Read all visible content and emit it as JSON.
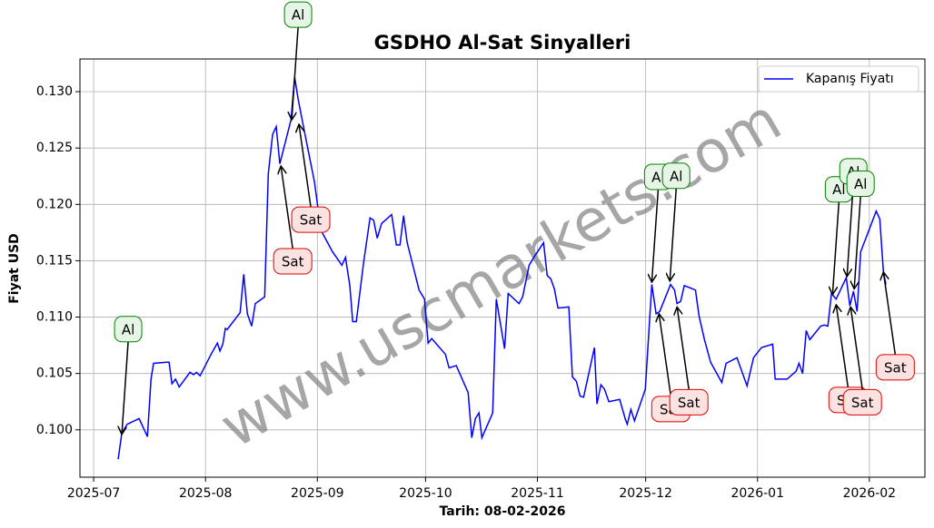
{
  "chart_data": {
    "type": "line",
    "title": "GSDHO Al-Sat Sinyalleri",
    "x_label": "Tarih: 08-02-2026",
    "y_label": "Fiyat USD",
    "watermark": "www.uscmarkets.com",
    "legend": "upper right",
    "grid": true,
    "xlim": [
      -3.8,
      230.4
    ],
    "ylim": [
      0.0958,
      0.1329
    ],
    "xticks": [
      {
        "value": 0,
        "label": "2025-07"
      },
      {
        "value": 31,
        "label": "2025-08"
      },
      {
        "value": 62,
        "label": "2025-09"
      },
      {
        "value": 92,
        "label": "2025-10"
      },
      {
        "value": 123,
        "label": "2025-11"
      },
      {
        "value": 153,
        "label": "2025-12"
      },
      {
        "value": 184,
        "label": "2026-01"
      },
      {
        "value": 215,
        "label": "2026-02"
      }
    ],
    "yticks": [
      {
        "value": 0.1,
        "label": "0.100"
      },
      {
        "value": 0.105,
        "label": "0.105"
      },
      {
        "value": 0.11,
        "label": "0.110"
      },
      {
        "value": 0.115,
        "label": "0.115"
      },
      {
        "value": 0.12,
        "label": "0.120"
      },
      {
        "value": 0.125,
        "label": "0.125"
      },
      {
        "value": 0.13,
        "label": "0.130"
      }
    ],
    "x": [
      6.8,
      7.8,
      9.3,
      12.6,
      14.9,
      15.9,
      16.6,
      20.2,
      20.9,
      21.7,
      22.7,
      23.7,
      26.7,
      27.7,
      28.5,
      29.5,
      32.7,
      34.3,
      35.0,
      35.8,
      36.5,
      37.0,
      40.6,
      41.6,
      42.6,
      43.8,
      44.8,
      47.4,
      48.4,
      49.6,
      50.6,
      51.6,
      54.7,
      55.7,
      56.7,
      58.4,
      61.2,
      62.2,
      63.5,
      66.2,
      68.8,
      69.8,
      71.0,
      71.8,
      72.8,
      74.8,
      76.6,
      77.6,
      78.6,
      79.8,
      82.6,
      83.9,
      84.9,
      85.9,
      86.9,
      90.2,
      91.7,
      92.7,
      93.7,
      97.5,
      98.5,
      100.5,
      103.8,
      104.8,
      105.8,
      106.8,
      107.6,
      110.6,
      111.6,
      113.9,
      114.9,
      117.9,
      118.9,
      120.7,
      122.2,
      124.7,
      125.7,
      126.7,
      127.7,
      128.7,
      131.7,
      132.7,
      133.8,
      134.8,
      135.8,
      138.8,
      139.5,
      140.6,
      141.6,
      142.8,
      145.8,
      147.4,
      147.9,
      148.9,
      149.9,
      152.9,
      154.7,
      155.9,
      156.9,
      159.9,
      161.0,
      161.7,
      162.7,
      163.7,
      166.8,
      167.8,
      169.3,
      171.0,
      174.1,
      175.3,
      178.3,
      181.1,
      182.9,
      185.1,
      188.2,
      188.9,
      192.2,
      194.7,
      195.5,
      196.5,
      197.5,
      198.5,
      201.5,
      202.5,
      203.5,
      204.5,
      205.8,
      208.6,
      209.6,
      210.6,
      211.6,
      212.6,
      216.9,
      217.9,
      218.9,
      219.6
    ],
    "series": [
      {
        "name": "Kapanış Fiyatı",
        "color": "#0000ff",
        "values": [
          0.0974,
          0.0997,
          0.1005,
          0.101,
          0.0994,
          0.1045,
          0.1059,
          0.106,
          0.106,
          0.1041,
          0.1045,
          0.1038,
          0.1051,
          0.1049,
          0.1051,
          0.1048,
          0.1068,
          0.1077,
          0.107,
          0.1076,
          0.109,
          0.1089,
          0.1104,
          0.1138,
          0.1103,
          0.1092,
          0.1112,
          0.1118,
          0.1227,
          0.1262,
          0.1269,
          0.1236,
          0.1275,
          0.1313,
          0.1293,
          0.1265,
          0.122,
          0.1196,
          0.1174,
          0.1158,
          0.1146,
          0.1153,
          0.1128,
          0.1096,
          0.1096,
          0.1148,
          0.1188,
          0.1186,
          0.117,
          0.1183,
          0.1191,
          0.1164,
          0.1164,
          0.119,
          0.1166,
          0.1124,
          0.1116,
          0.1077,
          0.1081,
          0.1067,
          0.1055,
          0.1057,
          0.1033,
          0.0993,
          0.101,
          0.1015,
          0.0993,
          0.1015,
          0.1116,
          0.1072,
          0.1121,
          0.1112,
          0.1118,
          0.1146,
          0.1154,
          0.1166,
          0.1137,
          0.1134,
          0.1125,
          0.1108,
          0.1109,
          0.1047,
          0.1043,
          0.103,
          0.1029,
          0.1073,
          0.1023,
          0.104,
          0.1036,
          0.1025,
          0.1027,
          0.1009,
          0.1005,
          0.1018,
          0.1008,
          0.1036,
          0.1129,
          0.1103,
          0.1105,
          0.1129,
          0.1124,
          0.1112,
          0.1114,
          0.1128,
          0.1124,
          0.1101,
          0.108,
          0.106,
          0.1042,
          0.1059,
          0.1064,
          0.1039,
          0.1064,
          0.1073,
          0.1076,
          0.1045,
          0.1045,
          0.1052,
          0.1059,
          0.105,
          0.1088,
          0.108,
          0.1092,
          0.1093,
          0.1092,
          0.1121,
          0.1116,
          0.1135,
          0.111,
          0.1123,
          0.1105,
          0.1158,
          0.1194,
          0.1187,
          0.114,
          0.1129
        ]
      }
    ],
    "annotations": [
      {
        "text": "Al",
        "x": 7.8,
        "y": 0.0996
      },
      {
        "text": "Sat",
        "x": 51.9,
        "y": 0.1234
      },
      {
        "text": "Al",
        "x": 54.9,
        "y": 0.1275
      },
      {
        "text": "Sat",
        "x": 56.9,
        "y": 0.1271
      },
      {
        "text": "Al",
        "x": 154.7,
        "y": 0.1131
      },
      {
        "text": "Sat",
        "x": 156.7,
        "y": 0.1103
      },
      {
        "text": "Al",
        "x": 159.7,
        "y": 0.1132
      },
      {
        "text": "Sat",
        "x": 161.7,
        "y": 0.1109
      },
      {
        "text": "Al",
        "x": 204.8,
        "y": 0.112
      },
      {
        "text": "Sat",
        "x": 205.8,
        "y": 0.1111
      },
      {
        "text": "Al",
        "x": 208.8,
        "y": 0.1136
      },
      {
        "text": "Sat",
        "x": 209.8,
        "y": 0.1109
      },
      {
        "text": "Al",
        "x": 210.8,
        "y": 0.1125
      },
      {
        "text": "Sat",
        "x": 218.9,
        "y": 0.114
      }
    ]
  }
}
